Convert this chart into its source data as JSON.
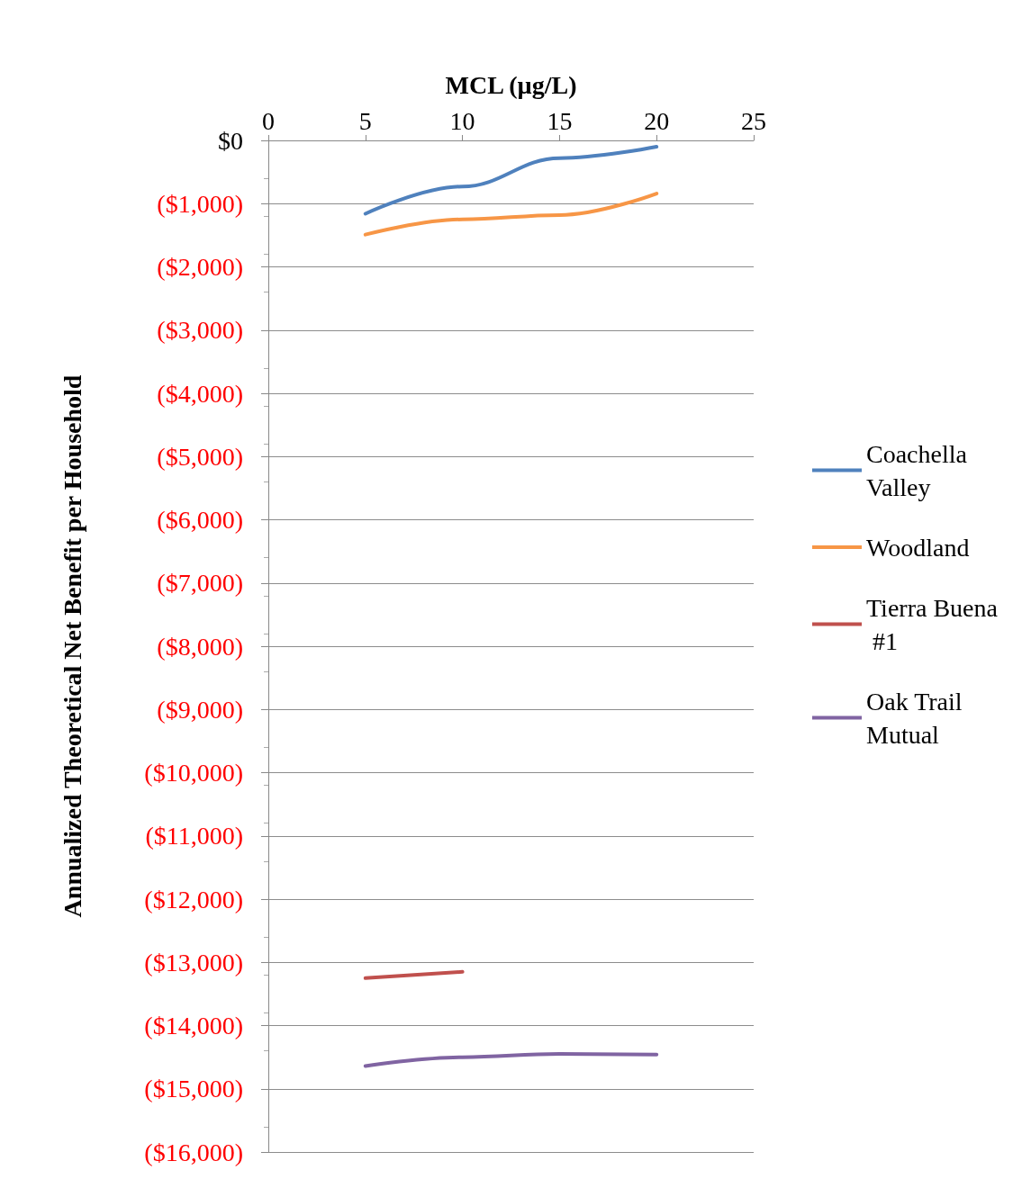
{
  "chart_data": {
    "type": "line",
    "xlabel": "MCL (µg/L)",
    "ylabel": "Annualized Theoretical Net Benefit per Household",
    "x": [
      5,
      10,
      15,
      20
    ],
    "series": [
      {
        "name": "Coachella Valley",
        "color": "#4f81bd",
        "values": [
          -1160,
          -730,
          -280,
          -100
        ]
      },
      {
        "name": "Woodland",
        "color": "#f79646",
        "values": [
          -1490,
          -1250,
          -1180,
          -840
        ]
      },
      {
        "name": "Tierra Buena #1",
        "color": "#c0504d",
        "values": [
          -13250,
          -13150,
          null,
          null
        ]
      },
      {
        "name": "Oak Trail Mutual",
        "color": "#8064a2",
        "values": [
          -14640,
          -14500,
          -14450,
          -14460
        ]
      }
    ],
    "xlim": [
      0,
      25
    ],
    "xticks": [
      0,
      5,
      10,
      15,
      20,
      25
    ],
    "ylim": [
      -16000,
      0
    ],
    "yticks": [
      {
        "value": 0,
        "label": "$0"
      },
      {
        "value": -1000,
        "label": "($1,000)"
      },
      {
        "value": -2000,
        "label": "($2,000)"
      },
      {
        "value": -3000,
        "label": "($3,000)"
      },
      {
        "value": -4000,
        "label": "($4,000)"
      },
      {
        "value": -5000,
        "label": "($5,000)"
      },
      {
        "value": -6000,
        "label": "($6,000)"
      },
      {
        "value": -7000,
        "label": "($7,000)"
      },
      {
        "value": -8000,
        "label": "($8,000)"
      },
      {
        "value": -9000,
        "label": "($9,000)"
      },
      {
        "value": -10000,
        "label": "($10,000)"
      },
      {
        "value": -11000,
        "label": "($11,000)"
      },
      {
        "value": -12000,
        "label": "($12,000)"
      },
      {
        "value": -13000,
        "label": "($13,000)"
      },
      {
        "value": -14000,
        "label": "($14,000)"
      },
      {
        "value": -15000,
        "label": "($15,000)"
      },
      {
        "value": -16000,
        "label": "($16,000)"
      }
    ],
    "grid": "y",
    "legend": "right",
    "marker": "none",
    "line_style": "solid"
  }
}
